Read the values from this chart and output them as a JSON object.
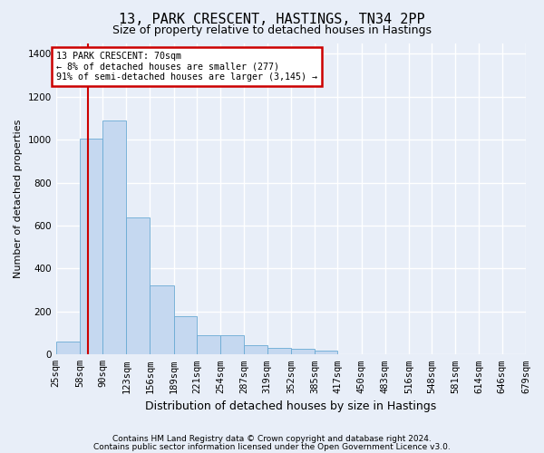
{
  "title1": "13, PARK CRESCENT, HASTINGS, TN34 2PP",
  "title2": "Size of property relative to detached houses in Hastings",
  "xlabel": "Distribution of detached houses by size in Hastings",
  "ylabel": "Number of detached properties",
  "footer1": "Contains HM Land Registry data © Crown copyright and database right 2024.",
  "footer2": "Contains public sector information licensed under the Open Government Licence v3.0.",
  "annotation_line1": "13 PARK CRESCENT: 70sqm",
  "annotation_line2": "← 8% of detached houses are smaller (277)",
  "annotation_line3": "91% of semi-detached houses are larger (3,145) →",
  "property_size": 70,
  "bin_edges": [
    25,
    58,
    90,
    123,
    156,
    189,
    221,
    254,
    287,
    319,
    352,
    385,
    417,
    450,
    483,
    516,
    548,
    581,
    614,
    646,
    679
  ],
  "bar_heights": [
    60,
    1005,
    1090,
    640,
    320,
    180,
    90,
    90,
    45,
    30,
    25,
    20,
    0,
    0,
    0,
    0,
    0,
    0,
    0,
    0
  ],
  "bar_color": "#c5d8f0",
  "bar_edge_color": "#6aaad4",
  "vline_color": "#cc0000",
  "vline_x": 70,
  "ylim": [
    0,
    1450
  ],
  "yticks": [
    0,
    200,
    400,
    600,
    800,
    1000,
    1200,
    1400
  ],
  "bg_color": "#e8eef8",
  "grid_color": "#ffffff",
  "annotation_box_edge": "#cc0000",
  "title1_fontsize": 11,
  "title2_fontsize": 9,
  "xlabel_fontsize": 9,
  "ylabel_fontsize": 8,
  "tick_fontsize": 7.5,
  "footer_fontsize": 6.5
}
